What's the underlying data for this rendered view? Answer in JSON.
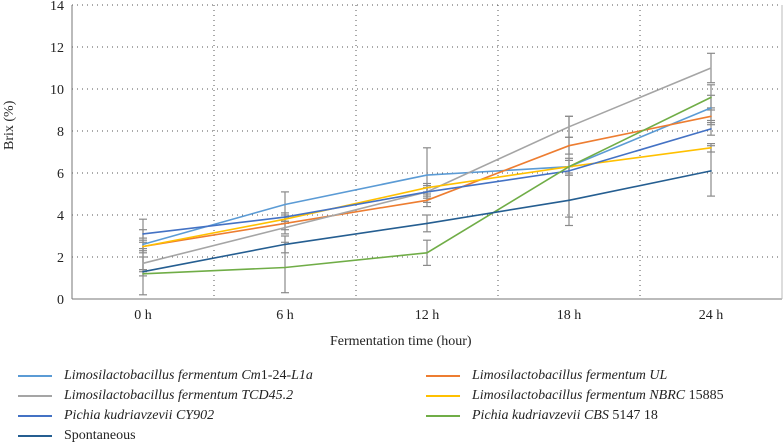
{
  "chart_data": {
    "type": "line",
    "title": "",
    "xlabel": "Fermentation time (hour)",
    "ylabel": "Brix (%)",
    "categories": [
      "0 h",
      "6 h",
      "12 h",
      "18 h",
      "24 h"
    ],
    "ylim": [
      0,
      14
    ],
    "yticks": [
      "0",
      "2",
      "4",
      "6",
      "8",
      "10",
      "12",
      "14"
    ],
    "grid": true,
    "legend_placement": "bottom",
    "series": [
      {
        "name": "Limosilactobacillus fermentum Cm1-24-L1a",
        "color": "#5b9bd5",
        "values": [
          2.6,
          4.5,
          5.9,
          6.3,
          9.1
        ],
        "errors": [
          1.2,
          0.6,
          1.3,
          0.4,
          0.6
        ]
      },
      {
        "name": "Limosilactobacillus fermentum UL",
        "color": "#ed7d31",
        "values": [
          2.5,
          3.6,
          4.7,
          7.3,
          8.7
        ],
        "errors": [
          0.3,
          0.3,
          0.3,
          0.4,
          0.4
        ]
      },
      {
        "name": "Limosilactobacillus fermentum TCD45.2",
        "color": "#a5a5a5",
        "values": [
          1.7,
          3.4,
          5.1,
          8.2,
          11.0
        ],
        "errors": [
          0.3,
          0.3,
          0.3,
          0.5,
          0.7
        ]
      },
      {
        "name": "Limosilactobacillus fermentum NBRC 15885",
        "color": "#ffc000",
        "values": [
          2.5,
          3.8,
          5.3,
          6.3,
          7.2
        ],
        "errors": [
          0.2,
          0.2,
          0.2,
          0.3,
          0.2
        ]
      },
      {
        "name": "Pichia kudriavzevii CY902",
        "color": "#4472c4",
        "values": [
          3.1,
          3.9,
          5.1,
          6.1,
          8.1
        ],
        "errors": [
          0.2,
          0.2,
          0.2,
          0.2,
          0.3
        ]
      },
      {
        "name": "Pichia kudriavzevii CBS 5147 18",
        "color": "#70ad47",
        "values": [
          1.2,
          1.5,
          2.2,
          6.3,
          9.6
        ],
        "errors": [
          0.1,
          1.2,
          0.6,
          2.4,
          0.6
        ]
      },
      {
        "name": "Spontaneous",
        "color": "#255e91",
        "values": [
          1.3,
          2.6,
          3.6,
          4.7,
          6.1
        ],
        "errors": [
          1.1,
          0.4,
          0.4,
          1.2,
          1.2
        ]
      }
    ]
  },
  "legend": {
    "s1": {
      "genus": "Limosilactobacillus fermentum",
      "strain_a": "Cm",
      "strain_b": "1-24-",
      "strain_c": "L1a"
    },
    "s2": {
      "genus": "Limosilactobacillus fermentum",
      "strain": "UL"
    },
    "s3": {
      "genus": "Limosilactobacillus fermentum",
      "strain": "TCD45.2"
    },
    "s4": {
      "genus": "Limosilactobacillus fermentum",
      "strain": "NBRC",
      "num": "15885"
    },
    "s5": {
      "genus": "Pichia kudriavzevii",
      "strain": "CY902"
    },
    "s6": {
      "genus": "Pichia kudriavzevii",
      "strain": "CBS",
      "num": "5147 18"
    },
    "s7": {
      "label": "Spontaneous"
    }
  }
}
